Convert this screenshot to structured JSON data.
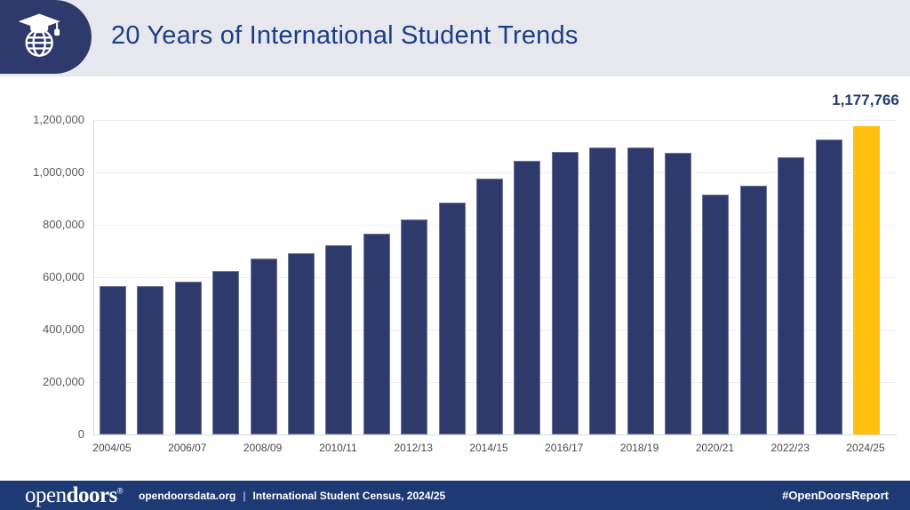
{
  "header": {
    "title": "20 Years of International Student Trends",
    "icon": "globe-graduation-cap-icon"
  },
  "colors": {
    "navy": "#2E3A6B",
    "accent_yellow": "#FFC010",
    "header_bg": "#E6E8EE",
    "footer_bg": "#1E3A75",
    "title_text": "#1C3E87"
  },
  "chart_data": {
    "type": "bar",
    "title": "20 Years of International Student Trends",
    "xlabel": "",
    "ylabel": "",
    "ylim": [
      0,
      1200000
    ],
    "grid": "horizontal",
    "categories": [
      "2004/05",
      "2005/06",
      "2006/07",
      "2007/08",
      "2008/09",
      "2009/10",
      "2010/11",
      "2011/12",
      "2012/13",
      "2013/14",
      "2014/15",
      "2015/16",
      "2016/17",
      "2017/18",
      "2018/19",
      "2019/20",
      "2020/21",
      "2021/22",
      "2022/23",
      "2023/24",
      "2024/25"
    ],
    "values": [
      565039,
      564766,
      582984,
      623805,
      671616,
      690923,
      723277,
      764495,
      819644,
      886052,
      974926,
      1043839,
      1078822,
      1094792,
      1095299,
      1075496,
      914095,
      948519,
      1057188,
      1126690,
      1177766
    ],
    "x_tick_every": 2,
    "y_tick_values": [
      0,
      200000,
      400000,
      600000,
      800000,
      1000000,
      1200000
    ],
    "y_tick_labels": [
      "0",
      "200,000",
      "400,000",
      "600,000",
      "800,000",
      "1,000,000",
      "1,200,000"
    ],
    "bar_color": "#2E3A6B",
    "highlight_index": 20,
    "highlight_color": "#FFC010",
    "highlight_label": "1,177,766"
  },
  "footer": {
    "logo_open": "open",
    "logo_doors": "doors",
    "logo_reg": "®",
    "site": "opendoorsdata.org",
    "divider": "|",
    "source": "International Student Census, 2024/25",
    "hashtag": "#OpenDoorsReport"
  }
}
